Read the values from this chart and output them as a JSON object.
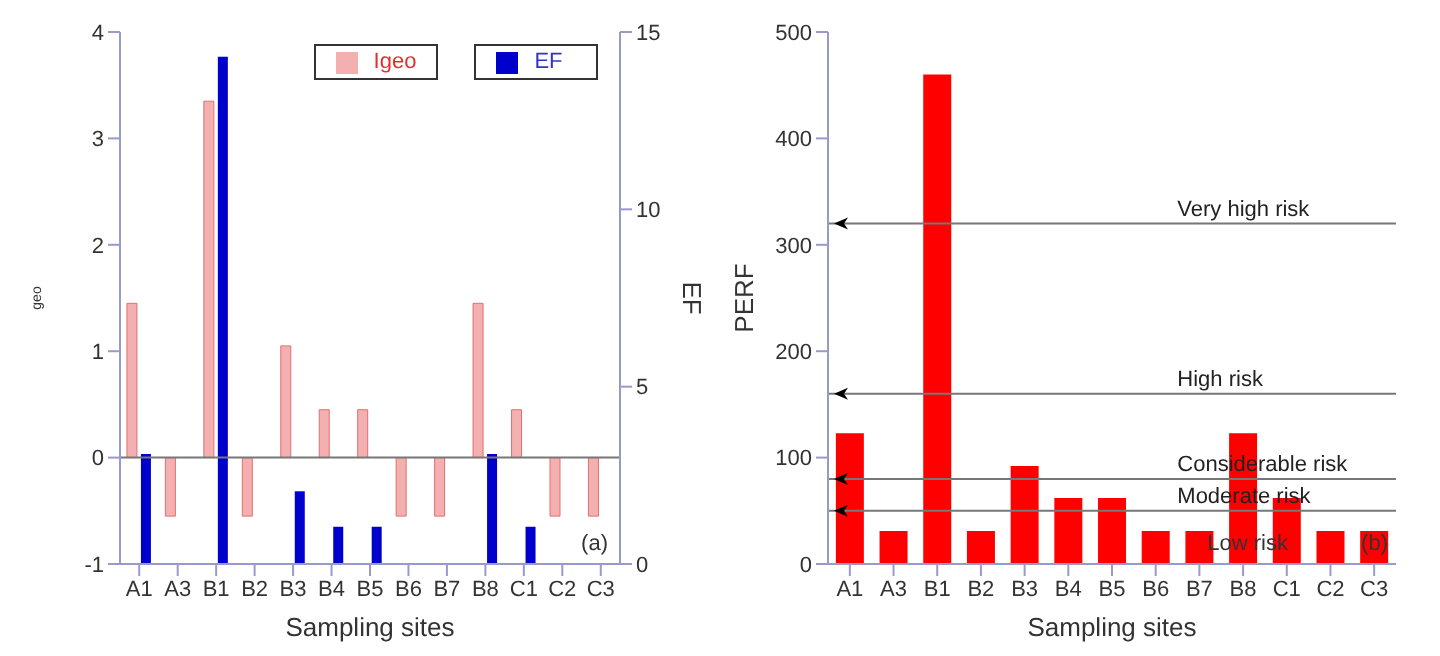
{
  "chart_data": [
    {
      "type": "bar",
      "categories": [
        "A1",
        "A3",
        "B1",
        "B2",
        "B3",
        "B4",
        "B5",
        "B6",
        "B7",
        "B8",
        "C1",
        "C2",
        "C3"
      ],
      "series": [
        {
          "name": "Igeo",
          "color": "#f4b0b0",
          "values": [
            1.45,
            -0.55,
            3.35,
            -0.55,
            1.05,
            0.45,
            0.45,
            -0.55,
            -0.55,
            1.45,
            0.45,
            -0.55,
            -0.55
          ]
        },
        {
          "name": "EF",
          "color": "#0000cc",
          "axis": "y2",
          "values": [
            3.1,
            0,
            14.3,
            0,
            2.05,
            1.05,
            1.05,
            0,
            0,
            3.1,
            1.05,
            0,
            0
          ]
        }
      ],
      "xlabel": "Sampling sites",
      "ylabel": "geo",
      "y2label": "EF",
      "ylim": [
        -1,
        4
      ],
      "yticks": [
        -1,
        0,
        1,
        2,
        3,
        4
      ],
      "y2lim": [
        0,
        15
      ],
      "y2ticks": [
        0,
        5,
        10,
        15
      ],
      "legend": "top",
      "grid": false,
      "ref_lines": [
        {
          "axis": "y",
          "value": 0
        }
      ],
      "annotations": [
        "(a)"
      ]
    },
    {
      "type": "bar",
      "categories": [
        "A1",
        "A3",
        "B1",
        "B2",
        "B3",
        "B4",
        "B5",
        "B6",
        "B7",
        "B8",
        "C1",
        "C2",
        "C3"
      ],
      "series": [
        {
          "color": "#ff0000",
          "values": [
            123,
            31,
            460,
            31,
            92,
            62,
            62,
            31,
            31,
            123,
            62,
            31,
            31
          ]
        }
      ],
      "xlabel": "Sampling sites",
      "ylabel": "PERF",
      "ylim": [
        0,
        500
      ],
      "yticks": [
        0,
        100,
        200,
        300,
        400,
        500
      ],
      "grid": false,
      "legend": false,
      "ref_lines": [
        {
          "axis": "y",
          "value": 320,
          "label": "Very high risk"
        },
        {
          "axis": "y",
          "value": 160,
          "label": "High risk"
        },
        {
          "axis": "y",
          "value": 80,
          "label": "Considerable risk"
        },
        {
          "axis": "y",
          "value": 50,
          "label": "Moderate risk"
        }
      ],
      "annotations": [
        "Low risk",
        "(b)"
      ]
    }
  ]
}
